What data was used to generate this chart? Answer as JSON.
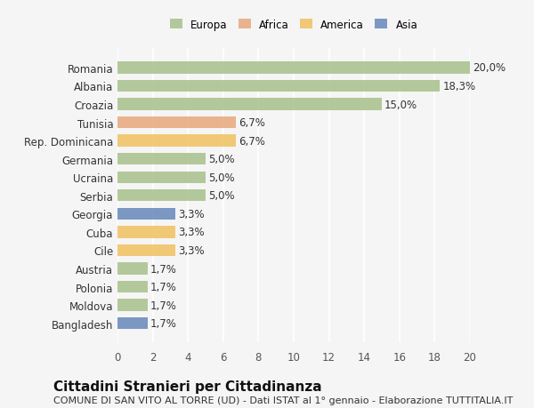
{
  "categories": [
    "Romania",
    "Albania",
    "Croazia",
    "Tunisia",
    "Rep. Dominicana",
    "Germania",
    "Ucraina",
    "Serbia",
    "Georgia",
    "Cuba",
    "Cile",
    "Austria",
    "Polonia",
    "Moldova",
    "Bangladesh"
  ],
  "values": [
    20.0,
    18.3,
    15.0,
    6.7,
    6.7,
    5.0,
    5.0,
    5.0,
    3.3,
    3.3,
    3.3,
    1.7,
    1.7,
    1.7,
    1.7
  ],
  "labels": [
    "20,0%",
    "18,3%",
    "15,0%",
    "6,7%",
    "6,7%",
    "5,0%",
    "5,0%",
    "5,0%",
    "3,3%",
    "3,3%",
    "3,3%",
    "1,7%",
    "1,7%",
    "1,7%",
    "1,7%"
  ],
  "continent": [
    "Europa",
    "Europa",
    "Europa",
    "Africa",
    "America",
    "Europa",
    "Europa",
    "Europa",
    "Asia",
    "America",
    "America",
    "Europa",
    "Europa",
    "Europa",
    "Asia"
  ],
  "colors": {
    "Europa": "#a8c08a",
    "Africa": "#e8a87c",
    "America": "#f0c060",
    "Asia": "#6688bb"
  },
  "legend_colors": {
    "Europa": "#a8c08a",
    "Africa": "#e8a87c",
    "America": "#f0c060",
    "Asia": "#6688bb"
  },
  "xlim": [
    0,
    20
  ],
  "xticks": [
    0,
    2,
    4,
    6,
    8,
    10,
    12,
    14,
    16,
    18,
    20
  ],
  "title": "Cittadini Stranieri per Cittadinanza",
  "subtitle": "COMUNE DI SAN VITO AL TORRE (UD) - Dati ISTAT al 1° gennaio - Elaborazione TUTTITALIA.IT",
  "background_color": "#f5f5f5",
  "grid_color": "#ffffff",
  "bar_height": 0.65,
  "label_fontsize": 8.5,
  "tick_fontsize": 8.5,
  "title_fontsize": 11,
  "subtitle_fontsize": 8
}
